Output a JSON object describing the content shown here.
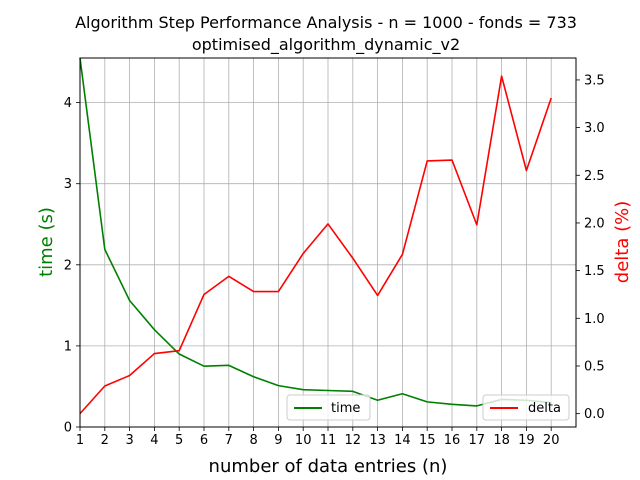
{
  "chart_data": {
    "type": "line",
    "title": "Algorithm Step Performance Analysis - n = 1000 - fonds = 733",
    "subtitle": "optimised_algorithm_dynamic_v2",
    "xlabel": "number of data entries (n)",
    "ylabel_left": "time (s)",
    "ylabel_right": "delta (%)",
    "x": [
      1,
      2,
      3,
      4,
      5,
      6,
      7,
      8,
      9,
      10,
      11,
      12,
      13,
      14,
      15,
      16,
      17,
      18,
      19,
      20
    ],
    "xlim": [
      1,
      21
    ],
    "ylim_left": [
      0,
      4.55
    ],
    "ylim_right": [
      -0.14,
      3.73
    ],
    "yticks_left": [
      0,
      1,
      2,
      3,
      4
    ],
    "yticks_right": [
      0.0,
      0.5,
      1.0,
      1.5,
      2.0,
      2.5,
      3.0,
      3.5
    ],
    "grid": true,
    "series": [
      {
        "name": "time",
        "axis": "left",
        "color": "#008000",
        "values": [
          4.55,
          2.19,
          1.56,
          1.2,
          0.9,
          0.75,
          0.76,
          0.62,
          0.51,
          0.46,
          0.45,
          0.44,
          0.33,
          0.41,
          0.31,
          0.28,
          0.26,
          0.34,
          0.33,
          0.3
        ]
      },
      {
        "name": "delta",
        "axis": "right",
        "color": "#ff0000",
        "values": [
          0.0,
          0.29,
          0.4,
          0.63,
          0.66,
          1.25,
          1.44,
          1.28,
          1.28,
          1.68,
          1.99,
          1.63,
          1.24,
          1.67,
          2.65,
          2.66,
          1.98,
          3.54,
          2.55,
          3.31
        ]
      }
    ],
    "legends": [
      {
        "placement": "lower-center",
        "entries": [
          "time"
        ]
      },
      {
        "placement": "lower-right",
        "entries": [
          "delta"
        ]
      }
    ]
  }
}
